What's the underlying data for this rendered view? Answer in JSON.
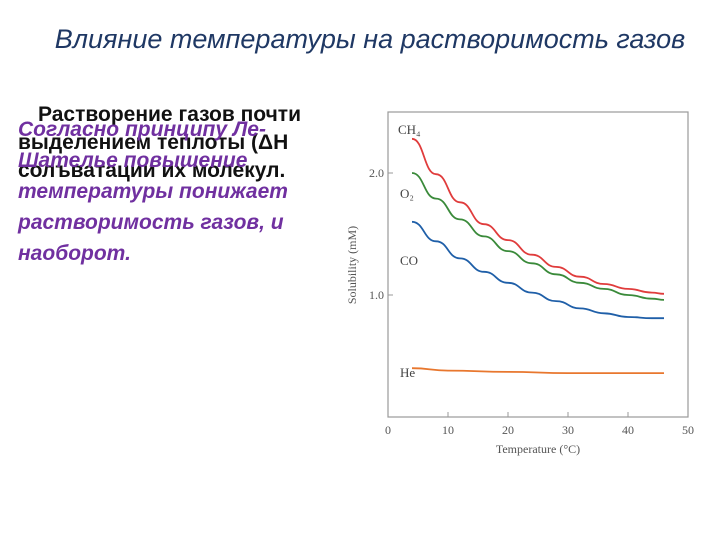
{
  "slide": {
    "title": "Влияние температуры на растворимость газов",
    "body_line1": "Растворение газов почти",
    "body_line2": "выделением теплоты (ΔН",
    "body_line3": "солъватации их молекул.",
    "overlay_text": "Согласно принципу Ле-Шателье повышение температуры понижает растворимость газов, и наоборот."
  },
  "chart_data": {
    "type": "line",
    "xlabel": "Temperature (°C)",
    "ylabel": "Solubility (mM)",
    "xlim": [
      0,
      50
    ],
    "ylim": [
      0,
      2.5
    ],
    "x_ticks": [
      "0",
      "10",
      "20",
      "30",
      "40",
      "50"
    ],
    "y_ticks": [
      "1.0",
      "2.0"
    ],
    "y_tick_values": [
      1.0,
      2.0
    ],
    "grid": false,
    "series": [
      {
        "name": "CH₄",
        "color": "#e03c3c",
        "x": [
          4,
          8,
          12,
          16,
          20,
          24,
          28,
          32,
          36,
          40,
          44,
          46
        ],
        "y": [
          2.28,
          1.99,
          1.76,
          1.58,
          1.45,
          1.33,
          1.23,
          1.15,
          1.09,
          1.05,
          1.02,
          1.01
        ]
      },
      {
        "name": "O₂",
        "color": "#3a8a3a",
        "x": [
          4,
          8,
          12,
          16,
          20,
          24,
          28,
          32,
          36,
          40,
          44,
          46
        ],
        "y": [
          2.0,
          1.79,
          1.62,
          1.48,
          1.36,
          1.26,
          1.17,
          1.1,
          1.05,
          1.0,
          0.97,
          0.96
        ]
      },
      {
        "name": "CO",
        "color": "#1f5fa8",
        "x": [
          4,
          8,
          12,
          16,
          20,
          24,
          28,
          32,
          36,
          40,
          44,
          46
        ],
        "y": [
          1.6,
          1.44,
          1.3,
          1.19,
          1.1,
          1.02,
          0.95,
          0.89,
          0.85,
          0.82,
          0.81,
          0.81
        ]
      },
      {
        "name": "He",
        "color": "#e8772e",
        "x": [
          4,
          10,
          20,
          30,
          40,
          46
        ],
        "y": [
          0.4,
          0.38,
          0.37,
          0.36,
          0.36,
          0.36
        ]
      }
    ]
  }
}
